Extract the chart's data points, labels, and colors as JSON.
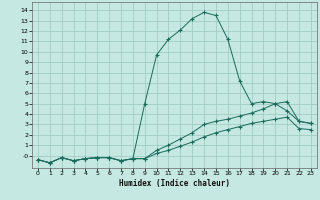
{
  "xlabel": "Humidex (Indice chaleur)",
  "background_color": "#c5e8e2",
  "grid_color": "#a0ccc4",
  "line_color": "#1a6b5a",
  "xlim": [
    -0.5,
    23.5
  ],
  "ylim": [
    -1.2,
    14.8
  ],
  "xticks": [
    0,
    1,
    2,
    3,
    4,
    5,
    6,
    7,
    8,
    9,
    10,
    11,
    12,
    13,
    14,
    15,
    16,
    17,
    18,
    19,
    20,
    21,
    22,
    23
  ],
  "yticks": [
    0,
    1,
    2,
    3,
    4,
    5,
    6,
    7,
    8,
    9,
    10,
    11,
    12,
    13,
    14
  ],
  "ytick_labels": [
    "-0",
    "1",
    "2",
    "3",
    "4",
    "5",
    "6",
    "7",
    "8",
    "9",
    "10",
    "11",
    "12",
    "13",
    "14"
  ],
  "curve1_x": [
    0,
    1,
    2,
    3,
    4,
    5,
    6,
    7,
    8,
    9,
    10,
    11,
    12,
    13,
    14,
    15,
    16,
    17,
    18,
    19,
    20,
    21,
    22,
    23
  ],
  "curve1_y": [
    -0.4,
    -0.7,
    -0.2,
    -0.5,
    -0.3,
    -0.2,
    -0.2,
    -0.5,
    -0.3,
    5.0,
    9.7,
    11.2,
    12.1,
    13.2,
    13.8,
    13.5,
    11.2,
    7.2,
    5.0,
    5.2,
    5.0,
    4.3,
    3.3,
    3.1
  ],
  "curve2_x": [
    0,
    1,
    2,
    3,
    4,
    5,
    6,
    7,
    8,
    9,
    10,
    11,
    12,
    13,
    14,
    15,
    16,
    17,
    18,
    19,
    20,
    21,
    22,
    23
  ],
  "curve2_y": [
    -0.4,
    -0.7,
    -0.2,
    -0.5,
    -0.3,
    -0.2,
    -0.2,
    -0.5,
    -0.3,
    -0.3,
    0.5,
    1.0,
    1.6,
    2.2,
    3.0,
    3.3,
    3.5,
    3.8,
    4.1,
    4.5,
    5.0,
    5.2,
    3.3,
    3.1
  ],
  "curve3_x": [
    0,
    1,
    2,
    3,
    4,
    5,
    6,
    7,
    8,
    9,
    10,
    11,
    12,
    13,
    14,
    15,
    16,
    17,
    18,
    19,
    20,
    21,
    22,
    23
  ],
  "curve3_y": [
    -0.4,
    -0.7,
    -0.2,
    -0.5,
    -0.3,
    -0.2,
    -0.2,
    -0.5,
    -0.3,
    -0.3,
    0.2,
    0.5,
    0.9,
    1.3,
    1.8,
    2.2,
    2.5,
    2.8,
    3.1,
    3.3,
    3.5,
    3.7,
    2.6,
    2.5
  ]
}
